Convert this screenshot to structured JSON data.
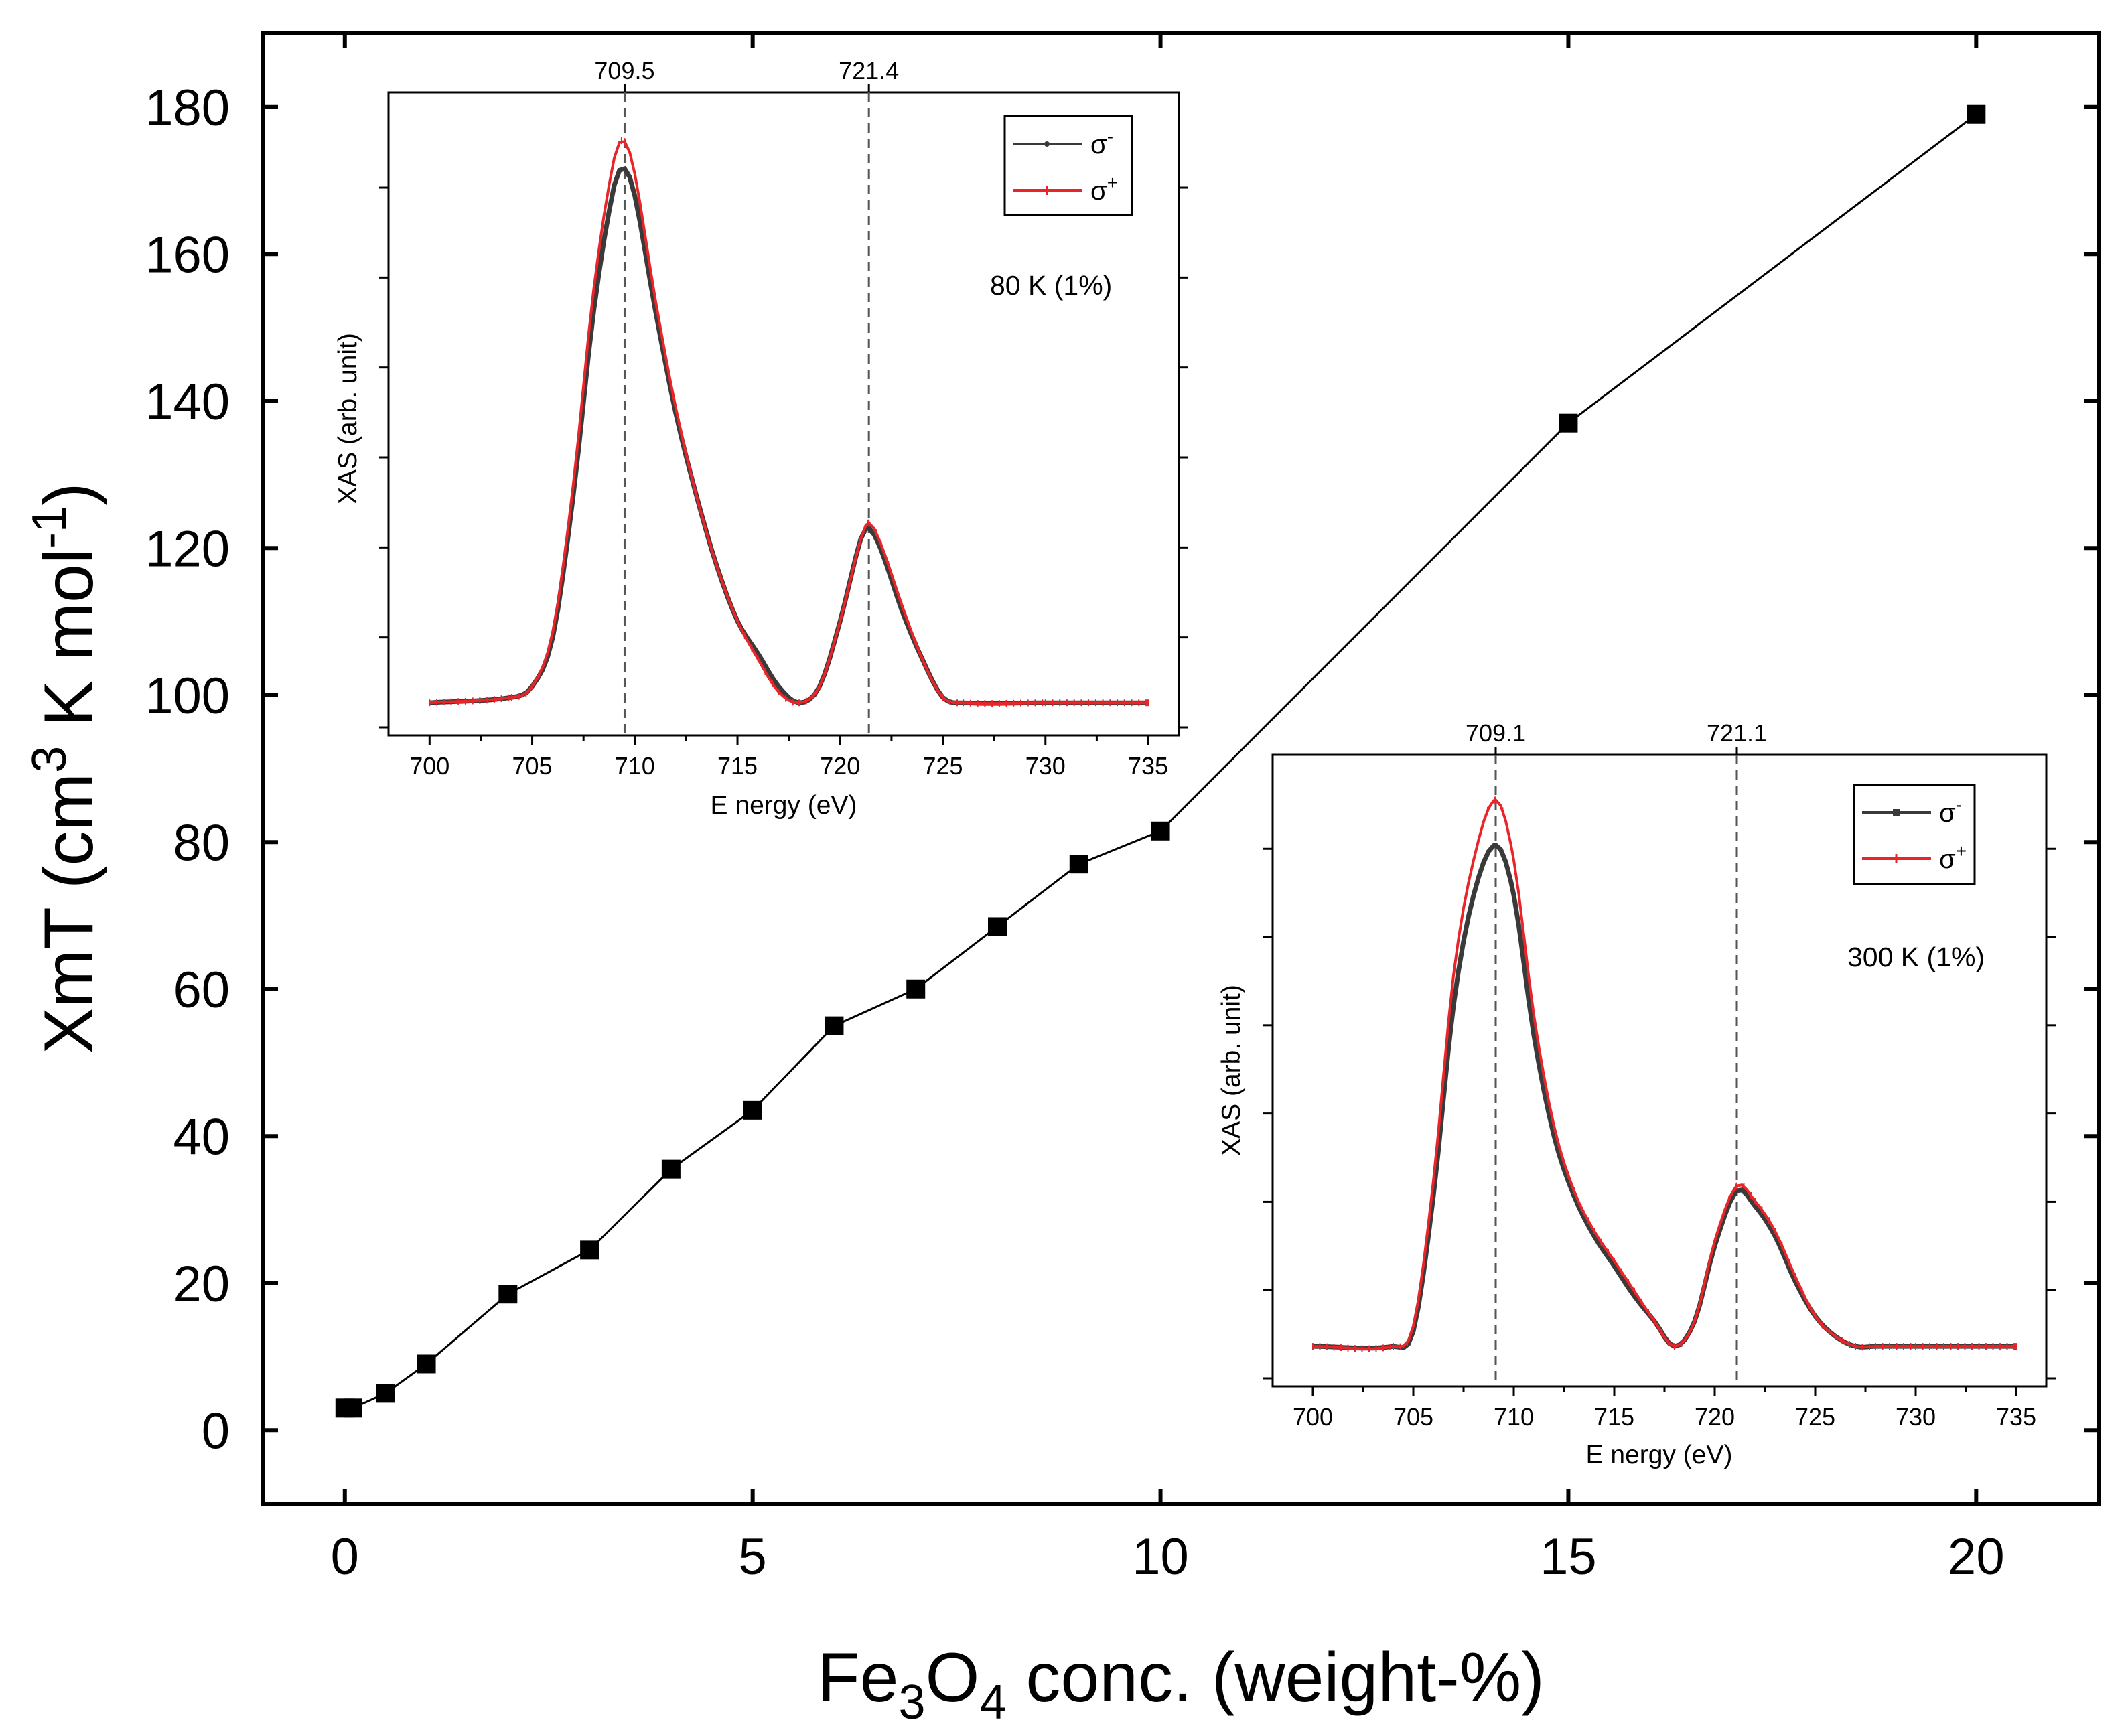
{
  "chart_data": [
    {
      "type": "line",
      "id": "main",
      "title": "",
      "xlabel": "Fe3O4 conc. (weight-%)",
      "xlabel_parts": [
        "Fe",
        "3",
        "O",
        "4",
        " conc. (weight-%)"
      ],
      "ylabel": "XmT (cm3 K mol-1)",
      "ylabel_parts": [
        "XmT (cm",
        "3",
        " K mol",
        "-1",
        ")"
      ],
      "xlim": [
        -1,
        21.5
      ],
      "ylim": [
        -10,
        190
      ],
      "x_ticks": [
        0,
        5,
        10,
        15,
        20
      ],
      "x_tick_labels": [
        "0",
        "5",
        "10",
        "15",
        "20"
      ],
      "y_ticks": [
        0,
        20,
        40,
        60,
        80,
        100,
        120,
        140,
        160,
        180
      ],
      "y_tick_labels": [
        "0",
        "20",
        "40",
        "60",
        "80",
        "100",
        "120",
        "140",
        "160",
        "180"
      ],
      "series": [
        {
          "name": "XmT",
          "color": "#000000",
          "marker": "square",
          "x": [
            0,
            0.1,
            0.5,
            1,
            2,
            3,
            4,
            5,
            6,
            7,
            8,
            9,
            10,
            15,
            20
          ],
          "y": [
            3,
            3,
            5,
            9,
            18.5,
            24.5,
            35.5,
            43.5,
            55,
            60,
            68.5,
            77,
            81.5,
            137,
            179
          ]
        }
      ]
    },
    {
      "type": "line",
      "id": "inset1",
      "xlabel": "E nergy (eV)",
      "ylabel": "XAS (arb. unit)",
      "annotation": "80 K (1%)",
      "xlim": [
        698,
        736.5
      ],
      "ylim": [
        -0.06,
        1.12
      ],
      "x_ticks": [
        700,
        705,
        710,
        715,
        720,
        725,
        730,
        735
      ],
      "x_tick_labels": [
        "700",
        "705",
        "710",
        "715",
        "720",
        "725",
        "730",
        "735"
      ],
      "y_ticks_count": 7,
      "vlines": [
        709.5,
        721.4
      ],
      "vline_labels": [
        "709.5",
        "721.4"
      ],
      "legend": {
        "position": "top-right",
        "entries": [
          "σ-",
          "σ+"
        ]
      },
      "legend_symbols": [
        {
          "base": "σ",
          "sup": "-"
        },
        {
          "base": "σ",
          "sup": "+"
        }
      ],
      "series": [
        {
          "name": "σ-",
          "color": "#3a3a3a",
          "x": [
            700,
            704,
            705,
            706,
            707,
            708,
            709,
            709.5,
            710,
            711,
            712,
            713,
            714,
            715,
            716,
            717,
            718,
            719,
            720,
            721,
            721.4,
            722,
            723,
            724,
            725,
            726,
            730,
            735
          ],
          "y": [
            0,
            0.01,
            0.03,
            0.12,
            0.38,
            0.72,
            0.95,
            0.98,
            0.93,
            0.72,
            0.53,
            0.38,
            0.25,
            0.15,
            0.09,
            0.03,
            0.0,
            0.03,
            0.15,
            0.3,
            0.32,
            0.28,
            0.17,
            0.08,
            0.01,
            0.0,
            0.0,
            0.0
          ]
        },
        {
          "name": "σ+",
          "color": "#e8262a",
          "x": [
            700,
            704,
            705,
            706,
            707,
            708,
            709,
            709.5,
            710,
            711,
            712,
            713,
            714,
            715,
            716,
            717,
            718,
            719,
            720,
            721,
            721.4,
            722,
            723,
            724,
            725,
            726,
            730,
            735
          ],
          "y": [
            0,
            0.01,
            0.03,
            0.13,
            0.4,
            0.76,
            1.0,
            1.03,
            0.97,
            0.74,
            0.54,
            0.38,
            0.25,
            0.15,
            0.08,
            0.02,
            0.0,
            0.03,
            0.15,
            0.3,
            0.33,
            0.29,
            0.18,
            0.08,
            0.01,
            0.0,
            0.0,
            0.0
          ]
        }
      ]
    },
    {
      "type": "line",
      "id": "inset2",
      "xlabel": "E nergy (eV)",
      "ylabel": "XAS (arb. unit)",
      "annotation": "300 K (1%)",
      "xlim": [
        698,
        736.5
      ],
      "ylim": [
        -0.08,
        1.18
      ],
      "x_ticks": [
        700,
        705,
        710,
        715,
        720,
        725,
        730,
        735
      ],
      "x_tick_labels": [
        "700",
        "705",
        "710",
        "715",
        "720",
        "725",
        "730",
        "735"
      ],
      "y_ticks_count": 7,
      "vlines": [
        709.1,
        721.1
      ],
      "vline_labels": [
        "709.1",
        "721.1"
      ],
      "legend": {
        "position": "top-right",
        "entries": [
          "σ-",
          "σ+"
        ]
      },
      "legend_symbols": [
        {
          "base": "σ",
          "sup": "-"
        },
        {
          "base": "σ",
          "sup": "+"
        }
      ],
      "series": [
        {
          "name": "σ-",
          "color": "#3a3a3a",
          "x": [
            700,
            704,
            705,
            706,
            707,
            708,
            709.1,
            710,
            711,
            712,
            713,
            714,
            715,
            716,
            717,
            718,
            719,
            720,
            721.1,
            722,
            723,
            724,
            725,
            726,
            727,
            728,
            730,
            735
          ],
          "y": [
            0,
            0.0,
            0.03,
            0.3,
            0.68,
            0.9,
            1.0,
            0.9,
            0.62,
            0.42,
            0.3,
            0.22,
            0.16,
            0.1,
            0.05,
            0.0,
            0.05,
            0.2,
            0.31,
            0.28,
            0.22,
            0.13,
            0.06,
            0.02,
            0.0,
            0.0,
            0.0,
            0.0
          ]
        },
        {
          "name": "σ+",
          "color": "#e8262a",
          "x": [
            700,
            704,
            705,
            706,
            707,
            708,
            709.1,
            710,
            711,
            712,
            713,
            714,
            715,
            716,
            717,
            718,
            719,
            720,
            721.1,
            722,
            723,
            724,
            725,
            726,
            727,
            728,
            730,
            735
          ],
          "y": [
            0,
            0.0,
            0.04,
            0.33,
            0.74,
            0.97,
            1.09,
            0.97,
            0.66,
            0.44,
            0.31,
            0.23,
            0.17,
            0.11,
            0.05,
            0.0,
            0.05,
            0.21,
            0.32,
            0.29,
            0.23,
            0.14,
            0.06,
            0.02,
            0.0,
            0.0,
            0.0,
            0.0
          ]
        }
      ]
    }
  ]
}
